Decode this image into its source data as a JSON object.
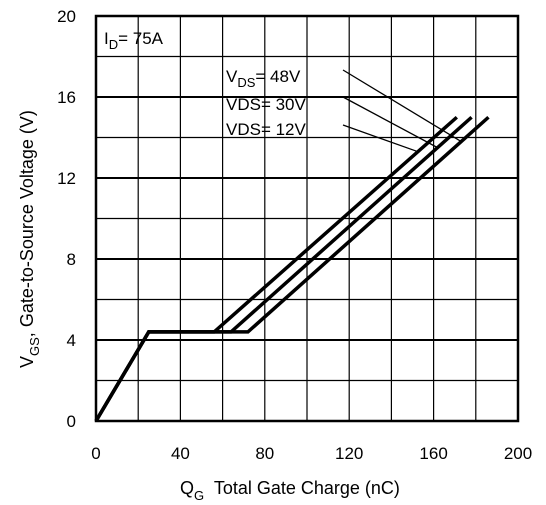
{
  "chart_data": {
    "type": "line",
    "title": "",
    "xlabel": {
      "main": "Q",
      "sub": "G",
      "rest": "  Total Gate Charge (nC)"
    },
    "ylabel": {
      "main": "V",
      "sub": "GS",
      "rest": ", Gate-to-Source Voltage (V)"
    },
    "xlim": [
      0,
      200
    ],
    "ylim": [
      0,
      20
    ],
    "xticks": [
      0,
      40,
      80,
      120,
      160,
      200
    ],
    "yticks": [
      0,
      4,
      8,
      12,
      16,
      20
    ],
    "x_tick_labels": [
      "0",
      "40",
      "80",
      "120",
      "160",
      "200"
    ],
    "y_tick_labels": [
      "0",
      "4",
      "8",
      "12",
      "16",
      "20"
    ],
    "grid": true,
    "condition": {
      "main": "I",
      "sub": "D",
      "rest": "= 75A"
    },
    "series": [
      {
        "name": "VDS= 48V",
        "label_main": "V",
        "label_sub": "DS",
        "label_rest": "= 48V",
        "x": [
          0,
          25,
          72,
          186
        ],
        "y": [
          0,
          4.4,
          4.4,
          15
        ]
      },
      {
        "name": "VDS= 30V",
        "label_main": "VDS= 30V",
        "label_sub": "",
        "label_rest": "",
        "x": [
          0,
          25,
          64,
          178
        ],
        "y": [
          0,
          4.4,
          4.4,
          15
        ]
      },
      {
        "name": "VDS= 12V",
        "label_main": "VDS= 12V",
        "label_sub": "",
        "label_rest": "",
        "x": [
          0,
          25,
          56,
          171
        ],
        "y": [
          0,
          4.4,
          4.4,
          15
        ]
      }
    ]
  }
}
